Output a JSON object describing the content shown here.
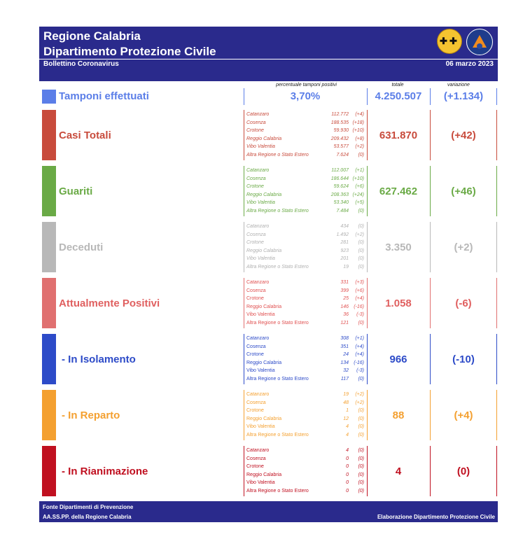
{
  "header": {
    "title": "Regione Calabria",
    "subtitle": "Dipartimento Protezione Civile",
    "bulletin": "Bollettino Coronavirus",
    "date": "06 marzo 2023"
  },
  "columns": {
    "percent": "percentuale tamponi positivi",
    "total": "totale",
    "variation": "variazione"
  },
  "colors": {
    "tamponi": "#5b7ee8",
    "casi": "#c84b3c",
    "guariti": "#6aaa46",
    "deceduti": "#b8b8b8",
    "attuali": "#e07070",
    "isolamento": "#2d4bc8",
    "reparto": "#f4a030",
    "rianimazione": "#c01020"
  },
  "tamponi": {
    "label": "Tamponi effettuati",
    "percent": "3,70%",
    "total": "4.250.507",
    "variation": "(+1.134)"
  },
  "casi": {
    "label": "Casi Totali",
    "total": "631.870",
    "variation": "(+42)",
    "provinces": [
      {
        "name": "Catanzaro",
        "value": "112.772",
        "var": "(+4)"
      },
      {
        "name": "Cosenza",
        "value": "188.535",
        "var": "(+18)"
      },
      {
        "name": "Crotone",
        "value": "59.930",
        "var": "(+10)"
      },
      {
        "name": "Reggio Calabria",
        "value": "209.432",
        "var": "(+8)"
      },
      {
        "name": "Vibo Valentia",
        "value": "53.577",
        "var": "(+2)"
      },
      {
        "name": "Altra Regione o Stato Estero",
        "value": "7.624",
        "var": "(0)"
      }
    ]
  },
  "guariti": {
    "label": "Guariti",
    "total": "627.462",
    "variation": "(+46)",
    "provinces": [
      {
        "name": "Catanzaro",
        "value": "112.007",
        "var": "(+1)"
      },
      {
        "name": "Cosenza",
        "value": "186.644",
        "var": "(+10)"
      },
      {
        "name": "Crotone",
        "value": "59.624",
        "var": "(+6)"
      },
      {
        "name": "Reggio Calabria",
        "value": "208.363",
        "var": "(+24)"
      },
      {
        "name": "Vibo Valentia",
        "value": "53.340",
        "var": "(+5)"
      },
      {
        "name": "Altra Regione o Stato Estero",
        "value": "7.484",
        "var": "(0)"
      }
    ]
  },
  "deceduti": {
    "label": "Deceduti",
    "total": "3.350",
    "variation": "(+2)",
    "provinces": [
      {
        "name": "Catanzaro",
        "value": "434",
        "var": "(0)"
      },
      {
        "name": "Cosenza",
        "value": "1.492",
        "var": "(+2)"
      },
      {
        "name": "Crotone",
        "value": "281",
        "var": "(0)"
      },
      {
        "name": "Reggio Calabria",
        "value": "923",
        "var": "(0)"
      },
      {
        "name": "Vibo Valentia",
        "value": "201",
        "var": "(0)"
      },
      {
        "name": "Altra Regione o Stato Estero",
        "value": "19",
        "var": "(0)"
      }
    ]
  },
  "attuali": {
    "label": "Attualmente Positivi",
    "total": "1.058",
    "variation": "(-6)",
    "provinces": [
      {
        "name": "Catanzaro",
        "value": "331",
        "var": "(+3)"
      },
      {
        "name": "Cosenza",
        "value": "399",
        "var": "(+6)"
      },
      {
        "name": "Crotone",
        "value": "25",
        "var": "(+4)"
      },
      {
        "name": "Reggio Calabria",
        "value": "146",
        "var": "(-16)"
      },
      {
        "name": "Vibo Valentia",
        "value": "36",
        "var": "(-3)"
      },
      {
        "name": "Altra Regione o Stato Estero",
        "value": "121",
        "var": "(0)"
      }
    ]
  },
  "isolamento": {
    "label": "- In Isolamento",
    "total": "966",
    "variation": "(-10)",
    "provinces": [
      {
        "name": "Catanzaro",
        "value": "308",
        "var": "(+1)"
      },
      {
        "name": "Cosenza",
        "value": "351",
        "var": "(+4)"
      },
      {
        "name": "Crotone",
        "value": "24",
        "var": "(+4)"
      },
      {
        "name": "Reggio Calabria",
        "value": "134",
        "var": "(-16)"
      },
      {
        "name": "Vibo Valentia",
        "value": "32",
        "var": "(-3)"
      },
      {
        "name": "Altra Regione o Stato Estero",
        "value": "117",
        "var": "(0)"
      }
    ]
  },
  "reparto": {
    "label": "- In Reparto",
    "total": "88",
    "variation": "(+4)",
    "provinces": [
      {
        "name": "Catanzaro",
        "value": "19",
        "var": "(+2)"
      },
      {
        "name": "Cosenza",
        "value": "48",
        "var": "(+2)"
      },
      {
        "name": "Crotone",
        "value": "1",
        "var": "(0)"
      },
      {
        "name": "Reggio Calabria",
        "value": "12",
        "var": "(0)"
      },
      {
        "name": "Vibo Valentia",
        "value": "4",
        "var": "(0)"
      },
      {
        "name": "Altra Regione o Stato Estero",
        "value": "4",
        "var": "(0)"
      }
    ]
  },
  "rianimazione": {
    "label": "- In Rianimazione",
    "total": "4",
    "variation": "(0)",
    "provinces": [
      {
        "name": "Catanzaro",
        "value": "4",
        "var": "(0)"
      },
      {
        "name": "Cosenza",
        "value": "0",
        "var": "(0)"
      },
      {
        "name": "Crotone",
        "value": "0",
        "var": "(0)"
      },
      {
        "name": "Reggio Calabria",
        "value": "0",
        "var": "(0)"
      },
      {
        "name": "Vibo Valentia",
        "value": "0",
        "var": "(0)"
      },
      {
        "name": "Altra Regione o Stato Estero",
        "value": "0",
        "var": "(0)"
      }
    ]
  },
  "footer": {
    "source1": "Fonte Dipartimenti di Prevenzione",
    "source2": "AA.SS.PP.  della Regione Calabria",
    "credit": "Elaborazione Dipartimento Protezione Civile"
  }
}
